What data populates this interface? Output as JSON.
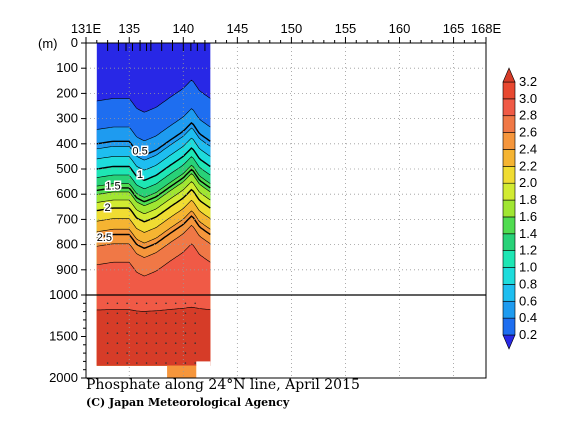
{
  "chart_data": {
    "type": "heatmap",
    "title": "Phosphate along 24°N line, April 2015",
    "credit": "(C) Japan Meteorological Agency",
    "x_axis": {
      "range": [
        131,
        168
      ],
      "ticks": [
        131,
        135,
        140,
        145,
        150,
        155,
        160,
        165,
        168
      ],
      "tick_labels": [
        "131E",
        "135",
        "140",
        "145",
        "150",
        "155",
        "160",
        "165",
        "168E"
      ]
    },
    "y_axis": {
      "unit_label": "(m)",
      "upper_range": [
        0,
        1000
      ],
      "upper_ticks": [
        0,
        100,
        200,
        300,
        400,
        500,
        600,
        700,
        800,
        900,
        1000
      ],
      "lower_range": [
        1000,
        2000
      ],
      "lower_ticks": [
        1500,
        2000
      ],
      "tick_labels": [
        "0",
        "100",
        "200",
        "300",
        "400",
        "500",
        "600",
        "700",
        "800",
        "900",
        "1000",
        "1500",
        "2000"
      ]
    },
    "section_lon_range": [
      132.0,
      142.5
    ],
    "stations_lon": [
      133,
      134,
      134.7,
      135.3,
      136,
      136.6,
      137,
      138,
      139,
      140,
      140.7,
      141.3,
      142
    ],
    "contour_labels": [
      {
        "text": "0.5",
        "lon": 136.0,
        "depth": 430
      },
      {
        "text": "1",
        "lon": 136.0,
        "depth": 525
      },
      {
        "text": "1.5",
        "lon": 133.5,
        "depth": 570
      },
      {
        "text": "2",
        "lon": 133.0,
        "depth": 655
      },
      {
        "text": "2.5",
        "lon": 132.7,
        "depth": 775
      }
    ],
    "contour_levels": [
      0.2,
      0.4,
      0.6,
      0.8,
      1.0,
      1.2,
      1.4,
      1.6,
      1.8,
      2.0,
      2.2,
      2.4,
      2.6,
      2.8,
      3.0,
      3.2
    ],
    "bold_contours": [
      0.5,
      1,
      1.5,
      2,
      2.5
    ],
    "profile_lon": [
      132.0,
      133.5,
      135.0,
      135.7,
      136.4,
      137.5,
      138.8,
      140.0,
      140.8,
      141.5,
      142.5
    ],
    "profile_offset_m": [
      0,
      -10,
      -10,
      30,
      45,
      25,
      -15,
      -50,
      -85,
      -40,
      -10
    ],
    "colorbar": {
      "levels": [
        0.2,
        0.4,
        0.6,
        0.8,
        1.0,
        1.2,
        1.4,
        1.6,
        1.8,
        2.0,
        2.2,
        2.4,
        2.6,
        2.8,
        3.0,
        3.2
      ],
      "labels": [
        "0.2",
        "0.4",
        "0.6",
        "0.8",
        "1.0",
        "1.2",
        "1.4",
        "1.6",
        "1.8",
        "2.0",
        "2.2",
        "2.4",
        "2.6",
        "2.8",
        "3.0",
        "3.2"
      ],
      "colors": [
        "#2828e6",
        "#1e6ef0",
        "#1e9bf0",
        "#1ebef0",
        "#1edcdc",
        "#1ee6b4",
        "#28d278",
        "#50dc50",
        "#a0e632",
        "#d2eb32",
        "#f0dc32",
        "#f5b432",
        "#f5963c",
        "#f07846",
        "#f05a46",
        "#e84830",
        "#d63c28"
      ]
    }
  }
}
